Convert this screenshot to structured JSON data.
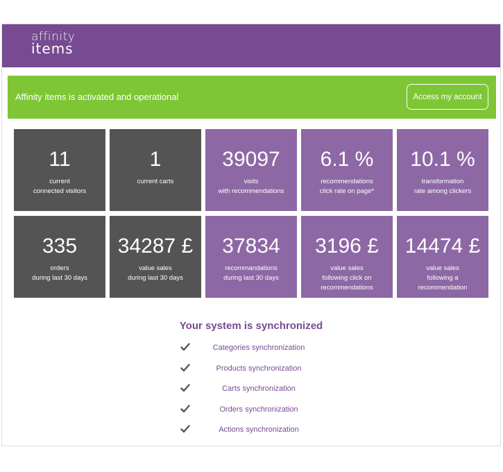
{
  "logo": {
    "line1": "affinity",
    "line2": "items"
  },
  "banner": {
    "status_text": "Affinity items is activated and operational",
    "account_button": "Access my account"
  },
  "stats": [
    {
      "value": "11",
      "label1": "current",
      "label2": "connected visitors",
      "label3": "",
      "theme": "dark"
    },
    {
      "value": "1",
      "label1": "current carts",
      "label2": "",
      "label3": "",
      "theme": "dark"
    },
    {
      "value": "39097",
      "label1": "visits",
      "label2": "with recommendations",
      "label3": "",
      "theme": "purple"
    },
    {
      "value": "6.1 %",
      "label1": "recommendations",
      "label2": "click rate on page*",
      "label3": "",
      "theme": "purple"
    },
    {
      "value": "10.1 %",
      "label1": "transformation",
      "label2": "rate among clickers",
      "label3": "",
      "theme": "purple"
    },
    {
      "value": "335",
      "label1": "orders",
      "label2": "during last 30 days",
      "label3": "",
      "theme": "dark"
    },
    {
      "value": "34287 £",
      "label1": "value sales",
      "label2": "during last 30 days",
      "label3": "",
      "theme": "dark"
    },
    {
      "value": "37834",
      "label1": "recommandations",
      "label2": "during last 30 days",
      "label3": "",
      "theme": "purple"
    },
    {
      "value": "3196 £",
      "label1": "value sales",
      "label2": "following click on",
      "label3": "recommendations",
      "theme": "purple"
    },
    {
      "value": "14474 £",
      "label1": "value sales",
      "label2": "following a",
      "label3": "recommendation",
      "theme": "purple"
    }
  ],
  "sync": {
    "title": "Your system is synchronized",
    "items": [
      {
        "label": "Categories synchronization",
        "icon": "check-icon"
      },
      {
        "label": "Products synchronization",
        "icon": "check-icon"
      },
      {
        "label": "Carts synchronization",
        "icon": "check-icon"
      },
      {
        "label": "Orders synchronization",
        "icon": "check-icon"
      },
      {
        "label": "Actions synchronization",
        "icon": "check-icon"
      }
    ]
  },
  "colors": {
    "brand_purple": "#774a92",
    "tile_purple": "#8d68a5",
    "tile_dark": "#545454",
    "status_green": "#7ec636"
  }
}
